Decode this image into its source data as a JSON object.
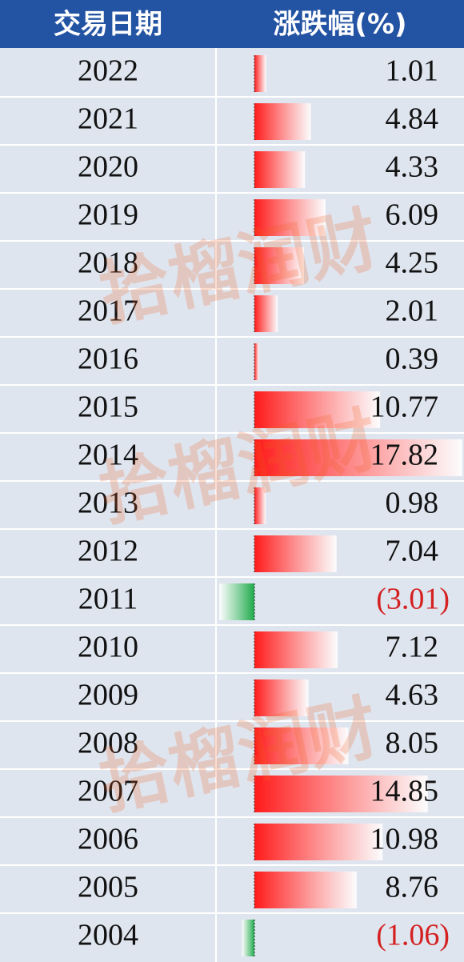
{
  "chart_data": {
    "type": "bar",
    "columns": [
      "交易日期",
      "涨跌幅(%)"
    ],
    "watermark": "拾榴润财",
    "categories": [
      "2022",
      "2021",
      "2020",
      "2019",
      "2018",
      "2017",
      "2016",
      "2015",
      "2014",
      "2013",
      "2012",
      "2011",
      "2010",
      "2009",
      "2008",
      "2007",
      "2006",
      "2005",
      "2004"
    ],
    "values": [
      1.01,
      4.84,
      4.33,
      6.09,
      4.25,
      2.01,
      0.39,
      10.77,
      17.82,
      0.98,
      7.04,
      -3.01,
      7.12,
      4.63,
      8.05,
      14.85,
      10.98,
      8.76,
      -1.06
    ],
    "value_labels": [
      "1.01",
      "4.84",
      "4.33",
      "6.09",
      "4.25",
      "2.01",
      "0.39",
      "10.77",
      "17.82",
      "0.98",
      "7.04",
      "(3.01)",
      "7.12",
      "4.63",
      "8.05",
      "14.85",
      "10.98",
      "8.76",
      "(1.06)"
    ],
    "colors": {
      "positive": "#ff1a1a",
      "negative": "#1faa4a"
    }
  }
}
